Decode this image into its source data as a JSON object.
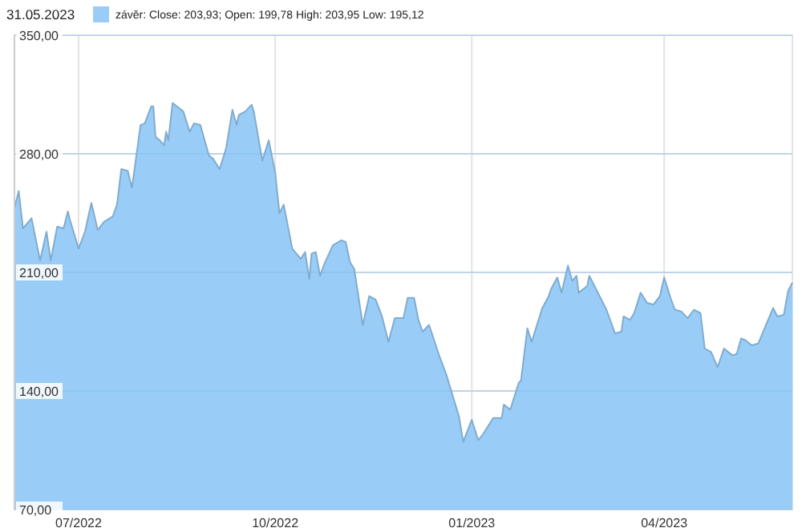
{
  "chart_data": {
    "type": "area",
    "title": "31.05.2023",
    "legend": "top",
    "grid": true,
    "xlim": [
      "2022-06-01",
      "2023-05-31"
    ],
    "xticks": [
      {
        "value": "2022-07-01",
        "label": "07/2022"
      },
      {
        "value": "2022-10-01",
        "label": "10/2022"
      },
      {
        "value": "2023-01-01",
        "label": "01/2023"
      },
      {
        "value": "2023-04-01",
        "label": "04/2023"
      }
    ],
    "ylim": [
      70,
      350
    ],
    "yticks": [
      {
        "value": 70,
        "label": "70,00"
      },
      {
        "value": 140,
        "label": "140,00"
      },
      {
        "value": 210,
        "label": "210,00"
      },
      {
        "value": 280,
        "label": "280,00"
      },
      {
        "value": 350,
        "label": "350,00"
      }
    ],
    "series": [
      {
        "name": "závěr: Close: 203,93; Open: 199,78 High: 203,95 Low: 195,12",
        "color": "#99cdf7",
        "x": [
          "2022-06-01",
          "2022-06-03",
          "2022-06-05",
          "2022-06-09",
          "2022-06-13",
          "2022-06-16",
          "2022-06-18",
          "2022-06-21",
          "2022-06-24",
          "2022-06-26",
          "2022-06-27",
          "2022-07-01",
          "2022-07-04",
          "2022-07-07",
          "2022-07-10",
          "2022-07-13",
          "2022-07-17",
          "2022-07-19",
          "2022-07-21",
          "2022-07-24",
          "2022-07-26",
          "2022-07-30",
          "2022-08-01",
          "2022-08-04",
          "2022-08-05",
          "2022-08-06",
          "2022-08-08",
          "2022-08-10",
          "2022-08-11",
          "2022-08-12",
          "2022-08-14",
          "2022-08-19",
          "2022-08-22",
          "2022-08-24",
          "2022-08-27",
          "2022-08-31",
          "2022-09-02",
          "2022-09-05",
          "2022-09-08",
          "2022-09-11",
          "2022-09-13",
          "2022-09-14",
          "2022-09-17",
          "2022-09-20",
          "2022-09-21",
          "2022-09-25",
          "2022-09-28",
          "2022-10-01",
          "2022-10-03",
          "2022-10-05",
          "2022-10-09",
          "2022-10-13",
          "2022-10-15",
          "2022-10-17",
          "2022-10-18",
          "2022-10-20",
          "2022-10-22",
          "2022-10-24",
          "2022-10-28",
          "2022-11-01",
          "2022-11-03",
          "2022-11-05",
          "2022-11-07",
          "2022-11-11",
          "2022-11-14",
          "2022-11-17",
          "2022-11-20",
          "2022-11-23",
          "2022-11-26",
          "2022-11-30",
          "2022-12-02",
          "2022-12-05",
          "2022-12-07",
          "2022-12-09",
          "2022-12-12",
          "2022-12-17",
          "2022-12-20",
          "2022-12-26",
          "2022-12-28",
          "2023-01-01",
          "2023-01-04",
          "2023-01-06",
          "2023-01-11",
          "2023-01-15",
          "2023-01-16",
          "2023-01-19",
          "2023-01-23",
          "2023-01-24",
          "2023-01-27",
          "2023-01-29",
          "2023-02-03",
          "2023-02-06",
          "2023-02-07",
          "2023-02-10",
          "2023-02-12",
          "2023-02-15",
          "2023-02-17",
          "2023-02-19",
          "2023-02-20",
          "2023-02-24",
          "2023-02-25",
          "2023-03-01",
          "2023-03-05",
          "2023-03-09",
          "2023-03-12",
          "2023-03-13",
          "2023-03-16",
          "2023-03-18",
          "2023-03-21",
          "2023-03-24",
          "2023-03-27",
          "2023-03-30",
          "2023-04-01",
          "2023-04-04",
          "2023-04-06",
          "2023-04-09",
          "2023-04-12",
          "2023-04-15",
          "2023-04-18",
          "2023-04-20",
          "2023-04-23",
          "2023-04-26",
          "2023-04-29",
          "2023-05-03",
          "2023-05-05",
          "2023-05-07",
          "2023-05-09",
          "2023-05-12",
          "2023-05-15",
          "2023-05-19",
          "2023-05-22",
          "2023-05-24",
          "2023-05-27",
          "2023-05-29",
          "2023-05-31"
        ],
        "values": [
          248,
          258,
          236,
          242,
          217,
          234,
          217,
          237,
          236,
          246,
          241,
          224,
          234,
          251,
          235,
          240,
          243,
          250,
          271,
          270,
          260,
          297,
          298,
          308,
          308,
          290,
          288,
          285,
          293,
          288,
          310,
          305,
          293,
          298,
          297,
          279,
          277,
          271,
          283,
          306,
          297,
          303,
          305,
          309,
          305,
          276,
          288,
          269,
          245,
          250,
          224,
          218,
          222,
          206,
          221,
          222,
          208,
          215,
          226,
          229,
          228,
          216,
          212,
          179,
          196,
          194,
          184,
          169,
          183,
          183,
          195,
          195,
          182,
          175,
          179,
          160,
          150,
          125,
          110,
          123,
          111,
          114,
          124,
          124,
          132,
          129,
          145,
          146,
          177,
          169,
          189,
          196,
          200,
          207,
          198,
          214,
          205,
          208,
          198,
          202,
          208,
          198,
          188,
          174,
          175,
          184,
          182,
          186,
          198,
          192,
          191,
          196,
          207,
          195,
          188,
          187,
          183,
          188,
          186,
          165,
          163,
          154,
          165,
          161,
          162,
          171,
          170,
          167,
          168,
          180,
          189,
          184,
          185,
          199,
          204
        ]
      }
    ]
  }
}
